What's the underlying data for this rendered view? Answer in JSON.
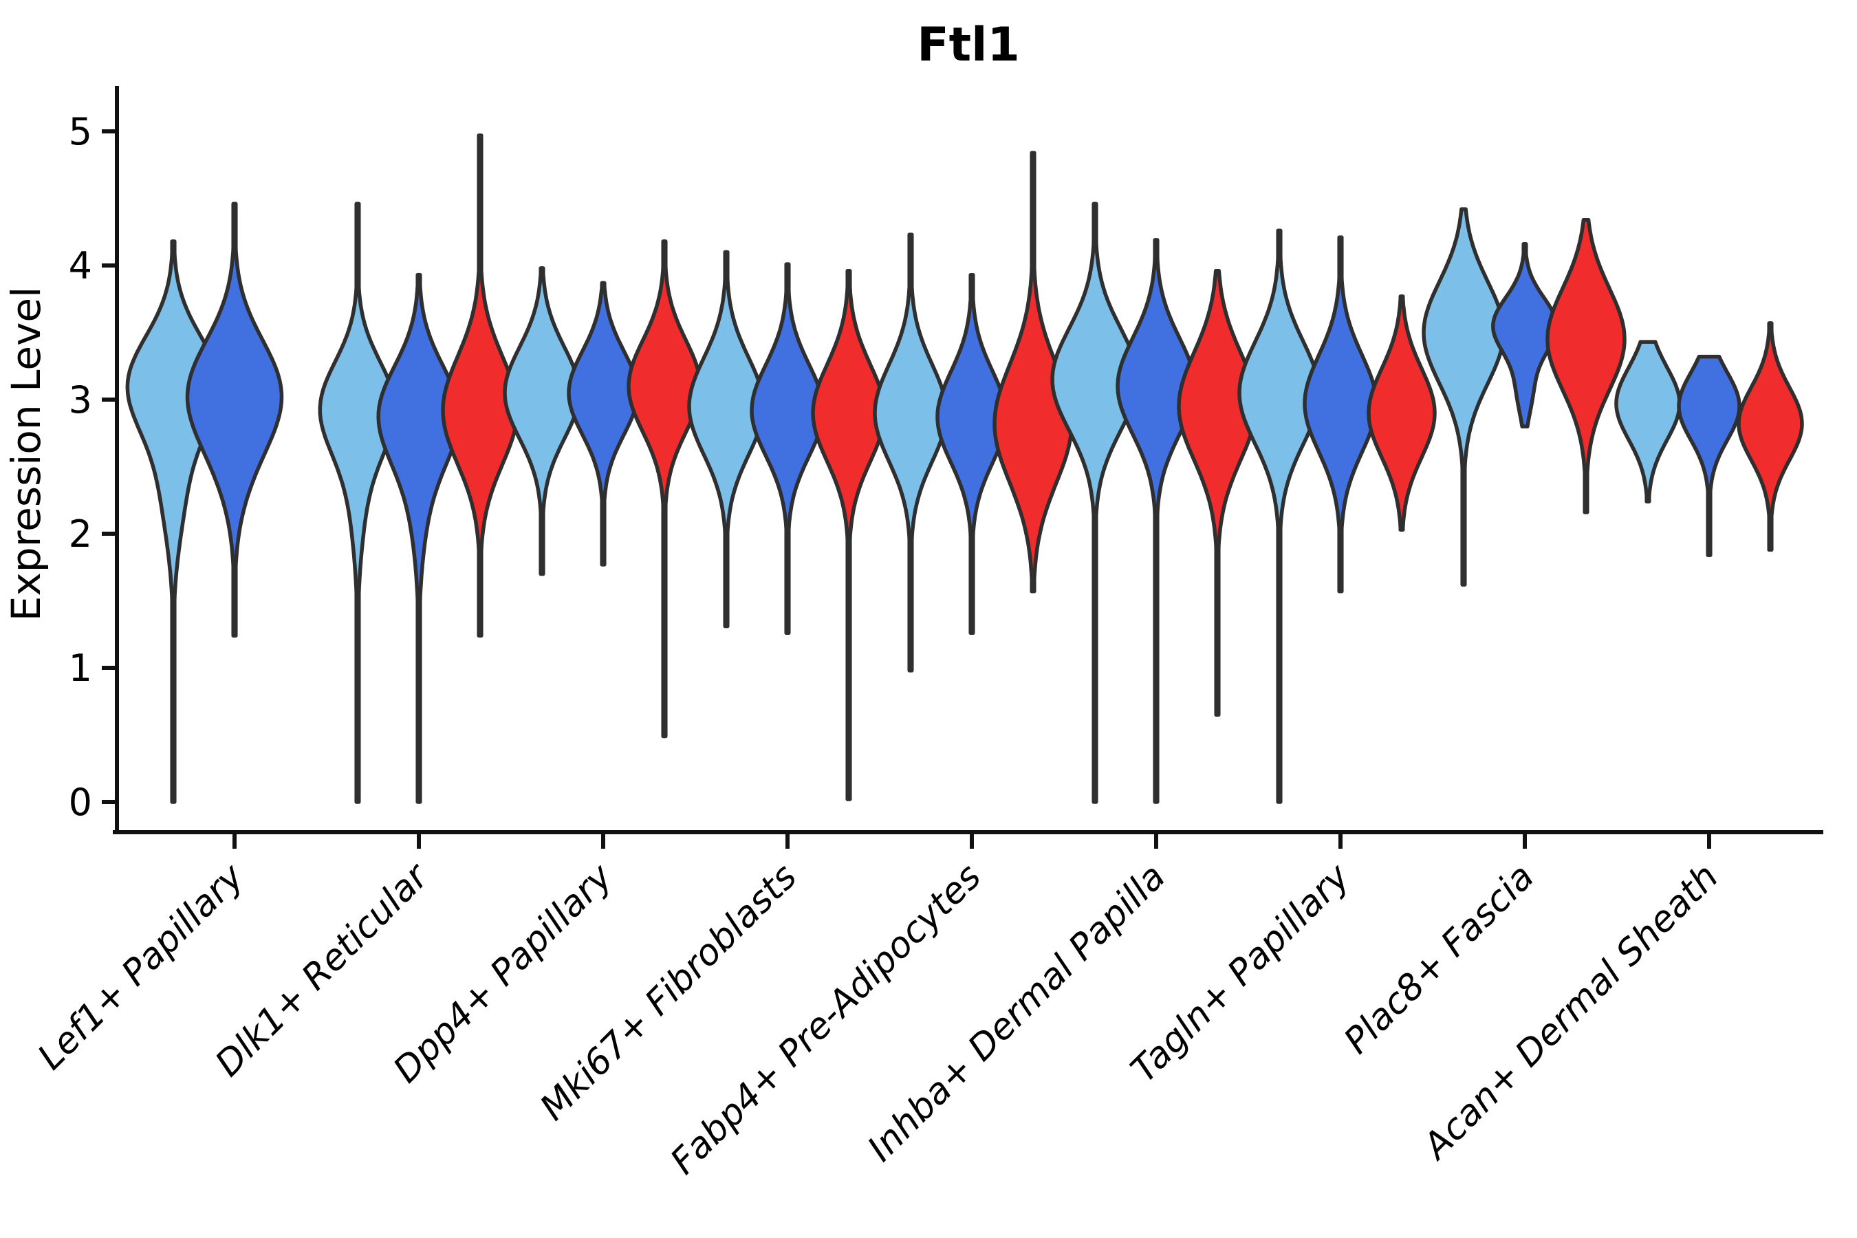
{
  "chart_data": {
    "type": "violin",
    "title": "Ftl1",
    "xlabel": "",
    "ylabel": "Expression Level",
    "ylim": [
      0,
      5
    ],
    "yticks": [
      "0",
      "1",
      "2",
      "3",
      "4",
      "5"
    ],
    "grid": false,
    "legend": "none",
    "categories": [
      "Lef1+ Papillary",
      "Dlk1+ Reticular",
      "Dpp4+ Papillary",
      "Mki67+ Fibroblasts",
      "Fabp4+ Pre-Adipocytes",
      "Inhba+ Dermal Papilla",
      "Tagln+ Papillary",
      "Plac8+ Fascia",
      "Acan+ Dermal Sheath"
    ],
    "split_colors": {
      "skyblue": "#7CBFE9",
      "royalblue": "#4170E0",
      "red": "#F02C2C"
    },
    "outline_color": "#2f2f2f",
    "violins": [
      {
        "category": 0,
        "slot": 0,
        "split": "skyblue",
        "min": 0.0,
        "max": 4.18,
        "center": 3.12,
        "spread": 0.36,
        "halfwidth": 64,
        "center2": 2.35,
        "spread2": 0.4,
        "halfwidth2": 16
      },
      {
        "category": 0,
        "slot": 1,
        "split": "royalblue",
        "min": 1.24,
        "max": 4.46,
        "center": 3.05,
        "spread": 0.4,
        "halfwidth": 66,
        "center2": 2.45,
        "spread2": 0.35,
        "halfwidth2": 10
      },
      {
        "category": 1,
        "slot": 0,
        "split": "skyblue",
        "min": 0.0,
        "max": 4.46,
        "center": 2.95,
        "spread": 0.34,
        "halfwidth": 52,
        "center2": 2.3,
        "spread2": 0.4,
        "halfwidth2": 10
      },
      {
        "category": 1,
        "slot": 1,
        "split": "royalblue",
        "min": 0.0,
        "max": 3.93,
        "center": 2.9,
        "spread": 0.36,
        "halfwidth": 56,
        "center2": 2.25,
        "spread2": 0.4,
        "halfwidth2": 10
      },
      {
        "category": 1,
        "slot": 2,
        "split": "red",
        "min": 1.24,
        "max": 4.97,
        "center": 2.92,
        "spread": 0.4,
        "halfwidth": 54
      },
      {
        "category": 2,
        "slot": 0,
        "split": "skyblue",
        "min": 1.7,
        "max": 3.98,
        "center": 3.05,
        "spread": 0.34,
        "halfwidth": 54
      },
      {
        "category": 2,
        "slot": 1,
        "split": "royalblue",
        "min": 1.77,
        "max": 3.87,
        "center": 3.05,
        "spread": 0.31,
        "halfwidth": 50
      },
      {
        "category": 2,
        "slot": 2,
        "split": "red",
        "min": 0.49,
        "max": 4.18,
        "center": 3.1,
        "spread": 0.34,
        "halfwidth": 52
      },
      {
        "category": 3,
        "slot": 0,
        "split": "skyblue",
        "min": 1.31,
        "max": 4.1,
        "center": 2.95,
        "spread": 0.36,
        "halfwidth": 54
      },
      {
        "category": 3,
        "slot": 1,
        "split": "royalblue",
        "min": 1.26,
        "max": 4.01,
        "center": 2.92,
        "spread": 0.34,
        "halfwidth": 52
      },
      {
        "category": 3,
        "slot": 2,
        "split": "red",
        "min": 0.02,
        "max": 3.96,
        "center": 2.9,
        "spread": 0.36,
        "halfwidth": 52
      },
      {
        "category": 4,
        "slot": 0,
        "split": "skyblue",
        "min": 0.98,
        "max": 4.23,
        "center": 2.9,
        "spread": 0.36,
        "halfwidth": 52
      },
      {
        "category": 4,
        "slot": 1,
        "split": "royalblue",
        "min": 1.26,
        "max": 3.93,
        "center": 2.87,
        "spread": 0.34,
        "halfwidth": 50
      },
      {
        "category": 4,
        "slot": 2,
        "split": "red",
        "min": 1.57,
        "max": 4.84,
        "center": 2.82,
        "spread": 0.44,
        "halfwidth": 56
      },
      {
        "category": 5,
        "slot": 0,
        "split": "skyblue",
        "min": 0.0,
        "max": 4.46,
        "center": 3.15,
        "spread": 0.38,
        "halfwidth": 62
      },
      {
        "category": 5,
        "slot": 1,
        "split": "royalblue",
        "min": 0.0,
        "max": 4.19,
        "center": 3.1,
        "spread": 0.36,
        "halfwidth": 56
      },
      {
        "category": 5,
        "slot": 2,
        "split": "red",
        "min": 0.65,
        "max": 3.96,
        "center": 2.95,
        "spread": 0.4,
        "halfwidth": 56
      },
      {
        "category": 6,
        "slot": 0,
        "split": "skyblue",
        "min": 0.0,
        "max": 4.26,
        "center": 3.05,
        "spread": 0.38,
        "halfwidth": 58
      },
      {
        "category": 6,
        "slot": 1,
        "split": "royalblue",
        "min": 1.57,
        "max": 4.21,
        "center": 2.97,
        "spread": 0.36,
        "halfwidth": 52
      },
      {
        "category": 6,
        "slot": 2,
        "split": "red",
        "min": 2.03,
        "max": 3.77,
        "center": 2.9,
        "spread": 0.33,
        "halfwidth": 48
      },
      {
        "category": 7,
        "slot": 0,
        "split": "skyblue",
        "min": 1.62,
        "max": 4.42,
        "center": 3.5,
        "spread": 0.38,
        "halfwidth": 58
      },
      {
        "category": 7,
        "slot": 1,
        "split": "royalblue",
        "min": 2.8,
        "max": 4.16,
        "center": 3.55,
        "spread": 0.21,
        "halfwidth": 46,
        "center2": 3.05,
        "spread2": 0.18,
        "halfwidth2": 10
      },
      {
        "category": 7,
        "slot": 2,
        "split": "red",
        "min": 2.16,
        "max": 4.34,
        "center": 3.45,
        "spread": 0.38,
        "halfwidth": 56
      },
      {
        "category": 8,
        "slot": 0,
        "split": "skyblue",
        "min": 2.24,
        "max": 3.43,
        "center": 2.97,
        "spread": 0.27,
        "halfwidth": 46
      },
      {
        "category": 8,
        "slot": 1,
        "split": "royalblue",
        "min": 1.84,
        "max": 3.32,
        "center": 2.95,
        "spread": 0.25,
        "halfwidth": 44
      },
      {
        "category": 8,
        "slot": 2,
        "split": "red",
        "min": 1.88,
        "max": 3.57,
        "center": 2.82,
        "spread": 0.27,
        "halfwidth": 46
      }
    ]
  }
}
